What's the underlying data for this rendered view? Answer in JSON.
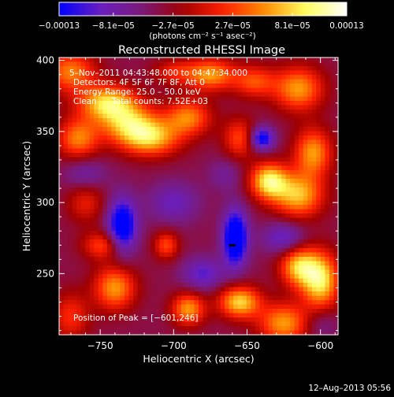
{
  "chart_data": {
    "type": "heatmap",
    "title": "Reconstructed RHESSI Image",
    "xlabel": "Heliocentric X (arcsec)",
    "ylabel": "Heliocentric Y (arcsec)",
    "xlim": [
      -778,
      -588
    ],
    "ylim": [
      207,
      402
    ],
    "x_ticks": [
      -750,
      -700,
      -650,
      -600
    ],
    "x_tick_labels": [
      "−750",
      "−700",
      "−650",
      "−600"
    ],
    "y_ticks": [
      250,
      300,
      350,
      400
    ],
    "y_tick_labels": [
      "250",
      "300",
      "350",
      "400"
    ],
    "colorbar": {
      "min": -0.00013,
      "max": 0.00013,
      "tick_values": [
        -0.00013,
        -8.1e-05,
        -2.7e-05,
        2.7e-05,
        8.1e-05,
        0.00013
      ],
      "tick_labels": [
        "−0.00013",
        "−8.1e−05",
        "−2.7e−05",
        "2.7e−05",
        "8.1e−05",
        "0.00013"
      ],
      "units_label": "(photons cm⁻² s⁻¹ asec⁻²)",
      "colormap": [
        "#0000ff",
        "#6a1fbf",
        "#7a1a7a",
        "#a00000",
        "#ff2000",
        "#ff8c00",
        "#ffff60",
        "#ffffff"
      ]
    },
    "annotations": {
      "time_range": "5–Nov–2011 04:43:48.000 to 04:47:34.000",
      "detectors": "Detectors: 4F 5F 6F 7F 8F, Att 0",
      "energy": "Energy Range: 25.0 – 50.0 keV",
      "clean_label": "Clean",
      "total_counts": "Total counts: 7.52E+03",
      "peak": "Position of Peak = [−601,246]"
    },
    "peak_position": [
      -601,
      246
    ],
    "footer_date": "12–Aug–2013 05:56",
    "blobs": [
      {
        "x": -745,
        "y": 370,
        "amp": 0.00012,
        "sx": 14,
        "sy": 9
      },
      {
        "x": -730,
        "y": 355,
        "amp": 0.0001,
        "sx": 14,
        "sy": 10
      },
      {
        "x": -765,
        "y": 345,
        "amp": 9e-05,
        "sx": 10,
        "sy": 10
      },
      {
        "x": -715,
        "y": 345,
        "amp": 0.0001,
        "sx": 14,
        "sy": 9
      },
      {
        "x": -690,
        "y": 360,
        "amp": 9e-05,
        "sx": 11,
        "sy": 9
      },
      {
        "x": -675,
        "y": 390,
        "amp": 0.0001,
        "sx": 12,
        "sy": 8
      },
      {
        "x": -615,
        "y": 380,
        "amp": 0.0001,
        "sx": 12,
        "sy": 11
      },
      {
        "x": -645,
        "y": 385,
        "amp": 7e-05,
        "sx": 10,
        "sy": 8
      },
      {
        "x": -655,
        "y": 345,
        "amp": 7e-05,
        "sx": 8,
        "sy": 10
      },
      {
        "x": -605,
        "y": 335,
        "amp": 0.0001,
        "sx": 9,
        "sy": 12
      },
      {
        "x": -615,
        "y": 305,
        "amp": 0.00011,
        "sx": 12,
        "sy": 11
      },
      {
        "x": -635,
        "y": 315,
        "amp": 0.00013,
        "sx": 9,
        "sy": 9
      },
      {
        "x": -600,
        "y": 245,
        "amp": 0.00013,
        "sx": 9,
        "sy": 14
      },
      {
        "x": -615,
        "y": 255,
        "amp": 0.00011,
        "sx": 9,
        "sy": 10
      },
      {
        "x": -625,
        "y": 215,
        "amp": 0.0001,
        "sx": 12,
        "sy": 10
      },
      {
        "x": -655,
        "y": 230,
        "amp": 0.00012,
        "sx": 10,
        "sy": 8
      },
      {
        "x": -690,
        "y": 225,
        "amp": 0.0001,
        "sx": 8,
        "sy": 8
      },
      {
        "x": -705,
        "y": 270,
        "amp": 7e-05,
        "sx": 6,
        "sy": 7
      },
      {
        "x": -740,
        "y": 240,
        "amp": 0.0001,
        "sx": 10,
        "sy": 11
      },
      {
        "x": -770,
        "y": 220,
        "amp": 6e-05,
        "sx": 9,
        "sy": 12
      },
      {
        "x": -748,
        "y": 270,
        "amp": 7e-05,
        "sx": 10,
        "sy": 7
      },
      {
        "x": -770,
        "y": 392,
        "amp": 9e-05,
        "sx": 12,
        "sy": 10
      },
      {
        "x": -700,
        "y": 392,
        "amp": 5e-05,
        "sx": 10,
        "sy": 6
      },
      {
        "x": -760,
        "y": 300,
        "amp": 5e-05,
        "sx": 9,
        "sy": 10
      },
      {
        "x": -735,
        "y": 283,
        "amp": -0.00012,
        "sx": 7,
        "sy": 14
      },
      {
        "x": -658,
        "y": 275,
        "amp": -0.00013,
        "sx": 6,
        "sy": 14
      },
      {
        "x": -640,
        "y": 345,
        "amp": -0.0001,
        "sx": 6,
        "sy": 6
      },
      {
        "x": -700,
        "y": 300,
        "amp": -5e-05,
        "sx": 12,
        "sy": 10
      },
      {
        "x": -680,
        "y": 250,
        "amp": -6e-05,
        "sx": 10,
        "sy": 8
      },
      {
        "x": -625,
        "y": 275,
        "amp": -6e-05,
        "sx": 10,
        "sy": 8
      },
      {
        "x": -760,
        "y": 320,
        "amp": -4e-05,
        "sx": 10,
        "sy": 8
      },
      {
        "x": -665,
        "y": 320,
        "amp": -3e-05,
        "sx": 8,
        "sy": 8
      },
      {
        "x": -600,
        "y": 215,
        "amp": -3e-05,
        "sx": 8,
        "sy": 8
      }
    ],
    "background": -4e-05
  }
}
